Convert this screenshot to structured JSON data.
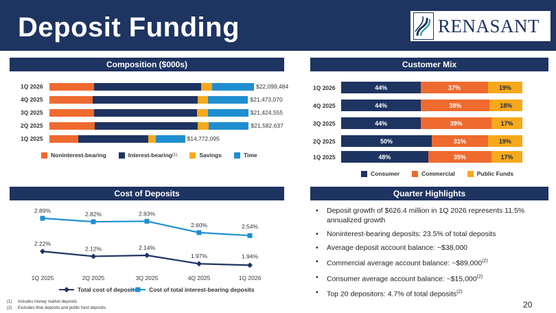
{
  "header": {
    "title": "Deposit Funding",
    "logo_text": "RENASANT"
  },
  "colors": {
    "navy": "#1e3461",
    "orange": "#ef6a2f",
    "gold": "#f6a91c",
    "blue": "#1f8ed1"
  },
  "composition": {
    "heading": "Composition ($000s)",
    "rows": [
      {
        "label": "1Q 2026",
        "total": "$22,099,484",
        "segments": [
          17.5,
          42.0,
          4.2,
          16.4
        ]
      },
      {
        "label": "4Q 2025",
        "total": "$21,473,070",
        "segments": [
          17.0,
          41.0,
          4.2,
          15.6
        ]
      },
      {
        "label": "3Q 2025",
        "total": "$21,424,555",
        "segments": [
          17.5,
          40.3,
          4.2,
          15.9
        ]
      },
      {
        "label": "2Q 2025",
        "total": "$21,582,637",
        "segments": [
          17.8,
          40.3,
          4.2,
          15.8
        ]
      },
      {
        "label": "1Q 2025",
        "total": "$14,772,095",
        "segments": [
          11.2,
          27.6,
          2.9,
          11.4
        ]
      }
    ],
    "legend": [
      {
        "label": "Noninterest-bearing",
        "sup": "",
        "color": "#ef6a2f"
      },
      {
        "label": "Interest-bearing",
        "sup": "(1)",
        "color": "#1e3461"
      },
      {
        "label": "Savings",
        "sup": "",
        "color": "#f6a91c"
      },
      {
        "label": "Time",
        "sup": "",
        "color": "#1f8ed1"
      }
    ]
  },
  "customer_mix": {
    "heading": "Customer Mix",
    "rows": [
      {
        "label": "1Q 2026",
        "consumer": "44%",
        "commercial": "37%",
        "public": "19%",
        "values": [
          44,
          37,
          19
        ]
      },
      {
        "label": "4Q 2025",
        "consumer": "44%",
        "commercial": "38%",
        "public": "18%",
        "values": [
          44,
          38,
          18
        ]
      },
      {
        "label": "3Q 2025",
        "consumer": "44%",
        "commercial": "39%",
        "public": "17%",
        "values": [
          44,
          39,
          17
        ]
      },
      {
        "label": "2Q 2025",
        "consumer": "50%",
        "commercial": "31%",
        "public": "19%",
        "values": [
          50,
          31,
          19
        ]
      },
      {
        "label": "1Q 2025",
        "consumer": "48%",
        "commercial": "35%",
        "public": "17%",
        "values": [
          48,
          35,
          17
        ]
      }
    ],
    "legend": [
      {
        "label": "Consumer",
        "color": "#1e3461"
      },
      {
        "label": "Commercial",
        "color": "#ef6a2f"
      },
      {
        "label": "Public Funds",
        "color": "#f6a91c"
      }
    ]
  },
  "cost_of_deposits": {
    "heading": "Cost of Deposits"
  },
  "chart_data": {
    "type": "line",
    "categories": [
      "1Q 2025",
      "2Q 2025",
      "3Q 2025",
      "4Q 2025",
      "1Q 2026"
    ],
    "series": [
      {
        "name": "Total cost of deposits",
        "values": [
          2.22,
          2.12,
          2.14,
          1.97,
          1.94
        ],
        "labels": [
          "2.22%",
          "2.12%",
          "2.14%",
          "1.97%",
          "1.94%"
        ],
        "color": "#1e3461"
      },
      {
        "name": "Cost of total interest-bearing deposits",
        "values": [
          2.89,
          2.82,
          2.83,
          2.6,
          2.54
        ],
        "labels": [
          "2.89%",
          "2.82%",
          "2.83%",
          "2.60%",
          "2.54%"
        ],
        "color": "#1f8ed1"
      }
    ],
    "title": "Cost of Deposits",
    "xlabel": "",
    "ylabel": "",
    "grid": false,
    "legend_position": "bottom"
  },
  "highlights": {
    "heading": "Quarter Highlights",
    "bullet": "•",
    "items": [
      {
        "text": "Deposit growth of $626.4 million in 1Q 2026 represents 11.5% annualized growth",
        "sup": ""
      },
      {
        "text": "Noninterest-bearing deposits: 23.5% of total deposits",
        "sup": ""
      },
      {
        "text": "Average deposit account balance: ~$38,000",
        "sup": ""
      },
      {
        "text": "Commercial average account balance: ~$89,000",
        "sup": "(2)"
      },
      {
        "text": "Consumer average account balance: ~$15,000",
        "sup": "(2)"
      },
      {
        "text": "Top 20 depositors: 4.7% of total deposits",
        "sup": "(2)"
      }
    ]
  },
  "footnotes": [
    {
      "mark": "(1)",
      "text": "Includes money market deposits."
    },
    {
      "mark": "(2)",
      "text": "Excludes time deposits and public fund deposits."
    }
  ],
  "page_number": "20"
}
